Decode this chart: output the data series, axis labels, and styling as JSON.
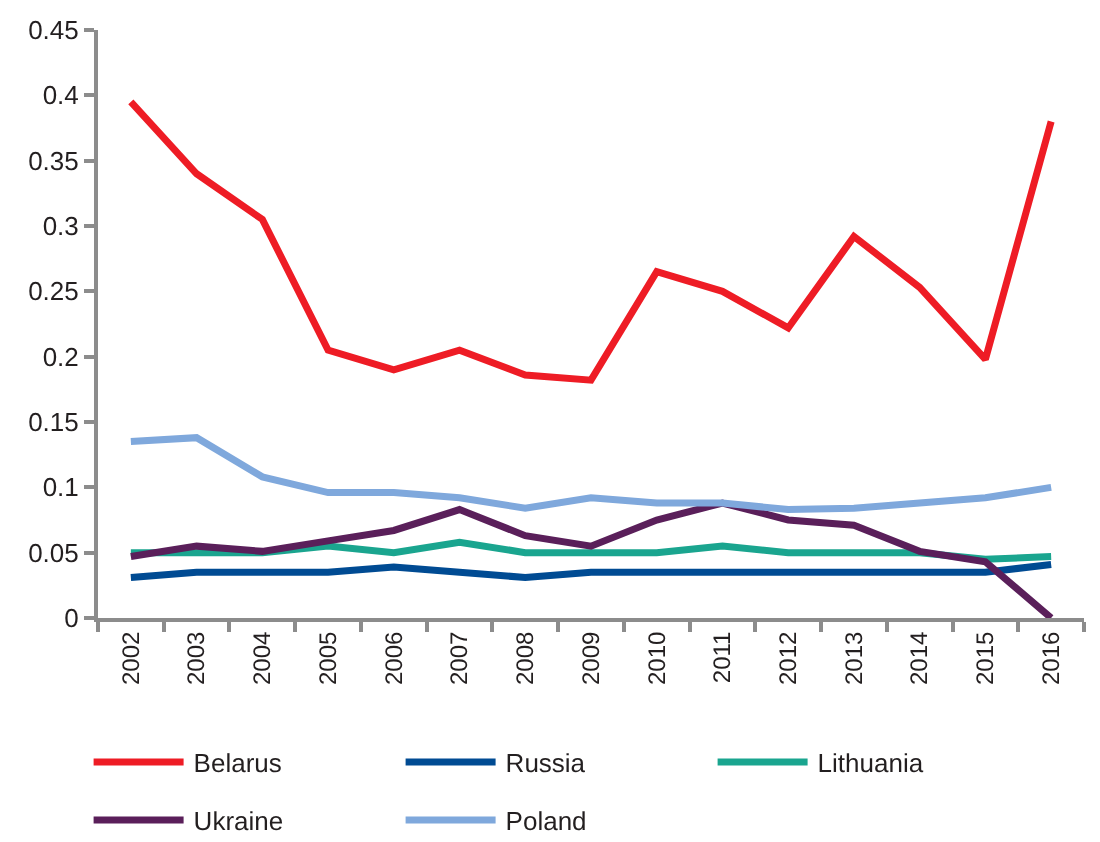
{
  "chart_data": {
    "type": "line",
    "categories": [
      "2002",
      "2003",
      "2004",
      "2005",
      "2006",
      "2007",
      "2008",
      "2009",
      "2010",
      "2011",
      "2012",
      "2013",
      "2014",
      "2015",
      "2016"
    ],
    "series": [
      {
        "name": "Belarus",
        "color": "#ee1c25",
        "values": [
          0.395,
          0.34,
          0.305,
          0.205,
          0.19,
          0.205,
          0.186,
          0.182,
          0.265,
          0.25,
          0.222,
          0.292,
          0.253,
          0.198,
          0.38
        ]
      },
      {
        "name": "Russia",
        "color": "#004b93",
        "values": [
          0.031,
          0.035,
          0.035,
          0.035,
          0.039,
          0.035,
          0.031,
          0.035,
          0.035,
          0.035,
          0.035,
          0.035,
          0.035,
          0.035,
          0.041
        ]
      },
      {
        "name": "Lithuania",
        "color": "#1aa58f",
        "values": [
          0.05,
          0.05,
          0.05,
          0.055,
          0.05,
          0.058,
          0.05,
          0.05,
          0.05,
          0.055,
          0.05,
          0.05,
          0.05,
          0.045,
          0.047
        ]
      },
      {
        "name": "Ukraine",
        "color": "#5a1f5a",
        "values": [
          0.047,
          0.055,
          0.051,
          0.059,
          0.067,
          0.083,
          0.063,
          0.055,
          0.075,
          0.088,
          0.075,
          0.071,
          0.051,
          0.043,
          0
        ]
      },
      {
        "name": "Poland",
        "color": "#7fa8dc",
        "values": [
          0.135,
          0.138,
          0.108,
          0.096,
          0.096,
          0.092,
          0.084,
          0.092,
          0.088,
          0.088,
          0.083,
          0.084,
          0.088,
          0.092,
          0.1
        ]
      }
    ],
    "ylim": [
      0,
      0.45
    ],
    "yticks": [
      0,
      0.05,
      0.1,
      0.15,
      0.2,
      0.25,
      0.3,
      0.35,
      0.4,
      0.45
    ],
    "legend": "bottom",
    "marker": "none",
    "line_style": "solid"
  }
}
